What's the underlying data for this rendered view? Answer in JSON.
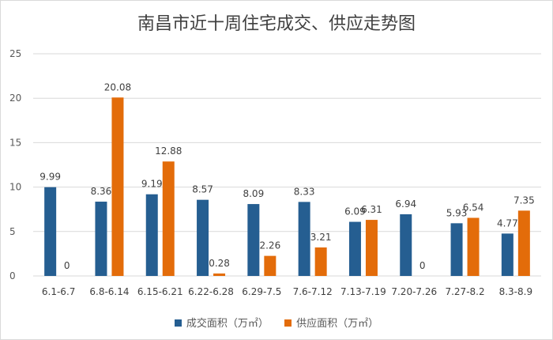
{
  "chart_data": {
    "type": "bar",
    "title": "南昌市近十周住宅成交、供应走势图",
    "categories": [
      "6.1-6.7",
      "6.8-6.14",
      "6.15-6.21",
      "6.22-6.28",
      "6.29-7.5",
      "7.6-7.12",
      "7.13-7.19",
      "7.20-7.26",
      "7.27-8.2",
      "8.3-8.9"
    ],
    "series": [
      {
        "name": "成交面积（万㎡）",
        "color": "#255e91",
        "values": [
          9.99,
          8.36,
          9.19,
          8.57,
          8.09,
          8.33,
          6.09,
          6.94,
          5.93,
          4.77
        ],
        "labels": [
          "9.99",
          "8.36",
          "9.19",
          "8.57",
          "8.09",
          "8.33",
          "6.09",
          "6.94",
          "5.93",
          "4.77"
        ]
      },
      {
        "name": "供应面积（万㎡）",
        "color": "#e36c0a",
        "values": [
          0,
          20.08,
          12.88,
          0.28,
          2.26,
          3.21,
          6.31,
          0,
          6.54,
          7.35
        ],
        "labels": [
          "0",
          "20.08",
          "12.88",
          "0.28",
          "2.26",
          "3.21",
          "6.31",
          "0",
          "6.54",
          "7.35"
        ]
      }
    ],
    "ylim": [
      0,
      25
    ],
    "yticks": [
      "0",
      "5",
      "10",
      "15",
      "20",
      "25"
    ],
    "ytick_values": [
      0,
      5,
      10,
      15,
      20,
      25
    ],
    "grid": true,
    "legend": "bottom"
  }
}
